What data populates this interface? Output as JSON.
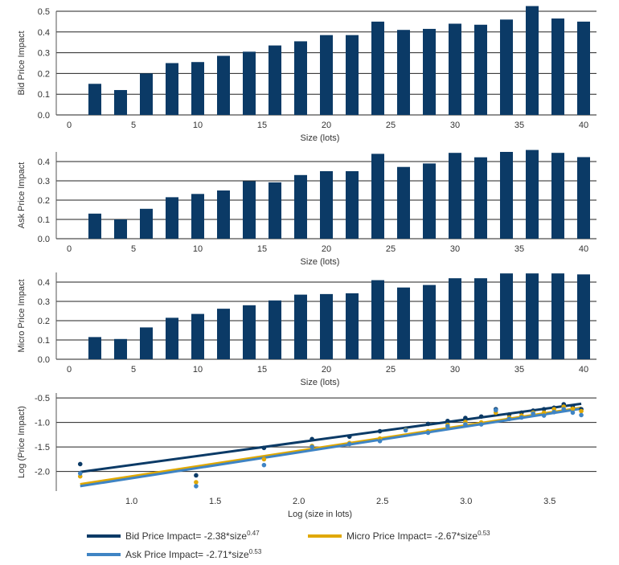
{
  "colors": {
    "bar": "#0b3a66",
    "axis": "#555555",
    "grid": "#222222",
    "bid": "#0b3a66",
    "ask": "#3f84c4",
    "micro": "#e0a800"
  },
  "chart_data": [
    {
      "type": "bar",
      "xlabel": "Size (lots)",
      "ylabel": "Bid Price Impact",
      "xlim": [
        -1,
        41
      ],
      "ylim": [
        0,
        0.5
      ],
      "xticks": [
        0,
        5,
        10,
        15,
        20,
        25,
        30,
        35,
        40
      ],
      "yticks": [
        0.0,
        0.1,
        0.2,
        0.3,
        0.4,
        0.5
      ],
      "grid": "horizontal",
      "x": [
        2,
        4,
        6,
        8,
        10,
        12,
        14,
        16,
        18,
        20,
        22,
        24,
        26,
        28,
        30,
        32,
        34,
        36,
        38,
        40
      ],
      "values": [
        0.15,
        0.12,
        0.2,
        0.25,
        0.255,
        0.285,
        0.305,
        0.335,
        0.355,
        0.385,
        0.385,
        0.45,
        0.41,
        0.415,
        0.44,
        0.435,
        0.46,
        0.525,
        0.465,
        0.45
      ]
    },
    {
      "type": "bar",
      "xlabel": "Size (lots)",
      "ylabel": "Ask Price Impact",
      "xlim": [
        -1,
        41
      ],
      "ylim": [
        0,
        0.45
      ],
      "xticks": [
        0,
        5,
        10,
        15,
        20,
        25,
        30,
        35,
        40
      ],
      "yticks": [
        0.0,
        0.1,
        0.2,
        0.3,
        0.4
      ],
      "grid": "horizontal",
      "x": [
        2,
        4,
        6,
        8,
        10,
        12,
        14,
        16,
        18,
        20,
        22,
        24,
        26,
        28,
        30,
        32,
        34,
        36,
        38,
        40
      ],
      "values": [
        0.13,
        0.1,
        0.155,
        0.215,
        0.232,
        0.25,
        0.298,
        0.292,
        0.33,
        0.35,
        0.35,
        0.44,
        0.372,
        0.39,
        0.445,
        0.422,
        0.45,
        0.46,
        0.445,
        0.423
      ]
    },
    {
      "type": "bar",
      "xlabel": "Size (lots)",
      "ylabel": "Micro Price Impact",
      "xlim": [
        -1,
        41
      ],
      "ylim": [
        0,
        0.45
      ],
      "xticks": [
        0,
        5,
        10,
        15,
        20,
        25,
        30,
        35,
        40
      ],
      "yticks": [
        0.0,
        0.1,
        0.2,
        0.3,
        0.4
      ],
      "grid": "horizontal",
      "x": [
        2,
        4,
        6,
        8,
        10,
        12,
        14,
        16,
        18,
        20,
        22,
        24,
        26,
        28,
        30,
        32,
        34,
        36,
        38,
        40
      ],
      "values": [
        0.115,
        0.105,
        0.165,
        0.215,
        0.235,
        0.262,
        0.28,
        0.305,
        0.335,
        0.338,
        0.342,
        0.41,
        0.372,
        0.385,
        0.42,
        0.42,
        0.445,
        0.445,
        0.445,
        0.44
      ]
    },
    {
      "type": "scatter",
      "xlabel": "Log (size in lots)",
      "ylabel": "Log (Price Impact)",
      "xlim": [
        0.55,
        3.78
      ],
      "ylim": [
        -2.4,
        -0.4
      ],
      "xticks": [
        1.0,
        1.5,
        2.0,
        2.5,
        3.0,
        3.5
      ],
      "yticks": [
        -2.0,
        -1.5,
        -1.0,
        -0.5
      ],
      "grid": "horizontal",
      "legend": "bottom",
      "x": [
        0.693,
        1.386,
        1.792,
        2.079,
        2.303,
        2.485,
        2.639,
        2.773,
        2.89,
        2.996,
        3.091,
        3.178,
        3.258,
        3.332,
        3.401,
        3.466,
        3.526,
        3.584,
        3.638,
        3.689
      ],
      "series": [
        {
          "name": "Bid Price Impact",
          "fit": "-2.38*size^0.47",
          "color": "#0b3a66",
          "y": [
            -1.85,
            -2.08,
            -1.52,
            -1.34,
            -1.29,
            -1.18,
            -1.13,
            -1.03,
            -0.97,
            -0.91,
            -0.88,
            -0.73,
            -0.84,
            -0.8,
            -0.76,
            -0.73,
            -0.7,
            -0.63,
            -0.68,
            -0.73
          ],
          "line": [
            [
              0.693,
              -2.01
            ],
            [
              3.689,
              -0.62
            ]
          ]
        },
        {
          "name": "Micro Price Impact",
          "fit": "-2.67*size^0.53",
          "color": "#e0a800",
          "y": [
            -2.1,
            -2.22,
            -1.75,
            -1.48,
            -1.42,
            -1.33,
            -1.15,
            -1.18,
            -1.05,
            -0.99,
            -1.0,
            -0.8,
            -0.9,
            -0.86,
            -0.8,
            -0.8,
            -0.73,
            -0.68,
            -0.72,
            -0.77
          ],
          "line": [
            [
              0.693,
              -2.26
            ],
            [
              3.689,
              -0.7
            ]
          ]
        },
        {
          "name": "Ask Price Impact",
          "fit": "-2.71*size^0.53",
          "color": "#3f84c4",
          "y": [
            -2.04,
            -2.3,
            -1.87,
            -1.5,
            -1.44,
            -1.38,
            -1.16,
            -1.21,
            -1.08,
            -1.04,
            -1.04,
            -0.75,
            -0.93,
            -0.9,
            -0.82,
            -0.86,
            -0.79,
            -0.73,
            -0.8,
            -0.85
          ],
          "line": [
            [
              0.693,
              -2.3
            ],
            [
              3.689,
              -0.72
            ]
          ]
        }
      ]
    }
  ],
  "legend": [
    {
      "label": "Bid Price Impact= -2.38*size",
      "sup": "0.47",
      "color": "#0b3a66"
    },
    {
      "label": "Micro Price Impact= -2.67*size",
      "sup": "0.53",
      "color": "#e0a800"
    },
    {
      "label": "Ask Price Impact= -2.71*size",
      "sup": "0.53",
      "color": "#3f84c4"
    }
  ]
}
